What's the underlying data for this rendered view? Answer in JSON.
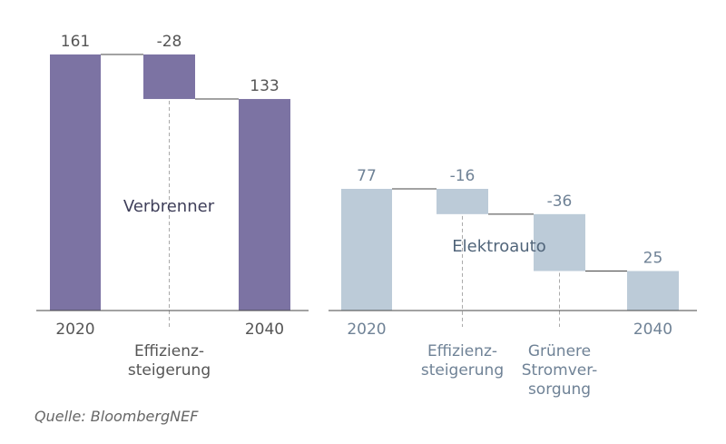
{
  "chart_data": [
    {
      "type": "waterfall",
      "title": "Verbrenner",
      "color": "#7c73a3",
      "categories": [
        "2020",
        "Effizienz-steigerung",
        "2040"
      ],
      "category_lines": [
        [
          "2020"
        ],
        [
          "Effizienz-",
          "steigerung"
        ],
        [
          "2040"
        ]
      ],
      "values": [
        161,
        -28,
        133
      ],
      "value_labels": [
        "161",
        "-28",
        "133"
      ],
      "kinds": [
        "total",
        "delta",
        "total"
      ],
      "ylim": [
        0,
        161
      ]
    },
    {
      "type": "waterfall",
      "title": "Elektroauto",
      "color": "#bccbd8",
      "categories": [
        "2020",
        "Effizienz-steigerung",
        "Grünere Stromver-sorgung",
        "2040"
      ],
      "category_lines": [
        [
          "2020"
        ],
        [
          "Effizienz-",
          "steigerung"
        ],
        [
          "Grünere",
          "Stromver-",
          "sorgung"
        ],
        [
          "2040"
        ]
      ],
      "values": [
        77,
        -16,
        -36,
        25
      ],
      "value_labels": [
        "77",
        "-16",
        "-36",
        "25"
      ],
      "kinds": [
        "total",
        "delta",
        "delta",
        "total"
      ],
      "ylim": [
        0,
        77
      ]
    }
  ],
  "source": "Quelle: BloombergNEF"
}
